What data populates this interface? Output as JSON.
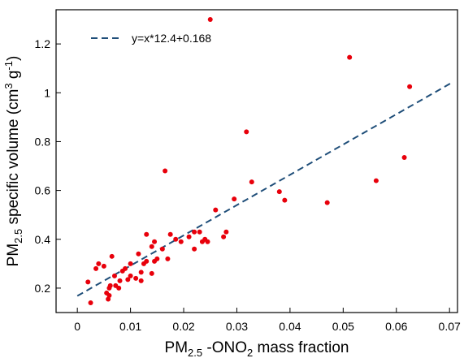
{
  "chart_data": {
    "type": "scatter",
    "x_axis": {
      "label_main": "PM",
      "label_sub": "2.5",
      "label_mid": " -ONO",
      "label_sub2": "2",
      "label_end": " mass fraction",
      "range": [
        -0.004,
        0.0715
      ],
      "ticks": [
        0,
        0.01,
        0.02,
        0.03,
        0.04,
        0.05,
        0.06,
        0.07
      ],
      "tick_labels": [
        "0",
        "0.01",
        "0.02",
        "0.03",
        "0.04",
        "0.05",
        "0.06",
        "0.07"
      ]
    },
    "y_axis": {
      "label_main": "PM",
      "label_sub": "2.5",
      "label_mid": " specific volume (cm",
      "label_sup": "3",
      "label_mid2": " g",
      "label_sup2": "-1",
      "label_end": ")",
      "range": [
        0.1,
        1.34
      ],
      "ticks": [
        0.2,
        0.4,
        0.6,
        0.8,
        1,
        1.2
      ],
      "tick_labels": [
        "0.2",
        "0.4",
        "0.6",
        "0.8",
        "1",
        "1.2"
      ]
    },
    "points": [
      [
        0.0025,
        0.14
      ],
      [
        0.002,
        0.225
      ],
      [
        0.0035,
        0.28
      ],
      [
        0.004,
        0.3
      ],
      [
        0.005,
        0.29
      ],
      [
        0.0055,
        0.18
      ],
      [
        0.006,
        0.17
      ],
      [
        0.0058,
        0.155
      ],
      [
        0.0062,
        0.21
      ],
      [
        0.006,
        0.2
      ],
      [
        0.0065,
        0.33
      ],
      [
        0.007,
        0.25
      ],
      [
        0.0072,
        0.21
      ],
      [
        0.0078,
        0.2
      ],
      [
        0.008,
        0.23
      ],
      [
        0.0085,
        0.27
      ],
      [
        0.009,
        0.28
      ],
      [
        0.0095,
        0.235
      ],
      [
        0.01,
        0.25
      ],
      [
        0.01,
        0.3
      ],
      [
        0.011,
        0.24
      ],
      [
        0.0115,
        0.34
      ],
      [
        0.012,
        0.265
      ],
      [
        0.012,
        0.23
      ],
      [
        0.0125,
        0.3
      ],
      [
        0.013,
        0.42
      ],
      [
        0.013,
        0.31
      ],
      [
        0.014,
        0.37
      ],
      [
        0.0145,
        0.39
      ],
      [
        0.014,
        0.26
      ],
      [
        0.015,
        0.32
      ],
      [
        0.0145,
        0.31
      ],
      [
        0.016,
        0.36
      ],
      [
        0.0165,
        0.68
      ],
      [
        0.017,
        0.32
      ],
      [
        0.0175,
        0.42
      ],
      [
        0.0185,
        0.4
      ],
      [
        0.0195,
        0.39
      ],
      [
        0.021,
        0.41
      ],
      [
        0.022,
        0.43
      ],
      [
        0.022,
        0.36
      ],
      [
        0.023,
        0.43
      ],
      [
        0.0235,
        0.39
      ],
      [
        0.024,
        0.4
      ],
      [
        0.0245,
        0.39
      ],
      [
        0.025,
        1.3
      ],
      [
        0.026,
        0.52
      ],
      [
        0.0275,
        0.41
      ],
      [
        0.028,
        0.43
      ],
      [
        0.0295,
        0.565
      ],
      [
        0.0318,
        0.84
      ],
      [
        0.0328,
        0.635
      ],
      [
        0.038,
        0.595
      ],
      [
        0.039,
        0.56
      ],
      [
        0.047,
        0.55
      ],
      [
        0.0512,
        1.145
      ],
      [
        0.0562,
        0.64
      ],
      [
        0.0615,
        0.735
      ],
      [
        0.0625,
        1.025
      ]
    ],
    "point_color": "#e8000b",
    "fit": {
      "label": "y=x*12.4+0.168",
      "slope": 12.4,
      "intercept": 0.168,
      "x_range": [
        0,
        0.0705
      ],
      "color": "#1f4e79",
      "style": "dashed"
    },
    "legend_position": "top-left",
    "grid": false
  }
}
